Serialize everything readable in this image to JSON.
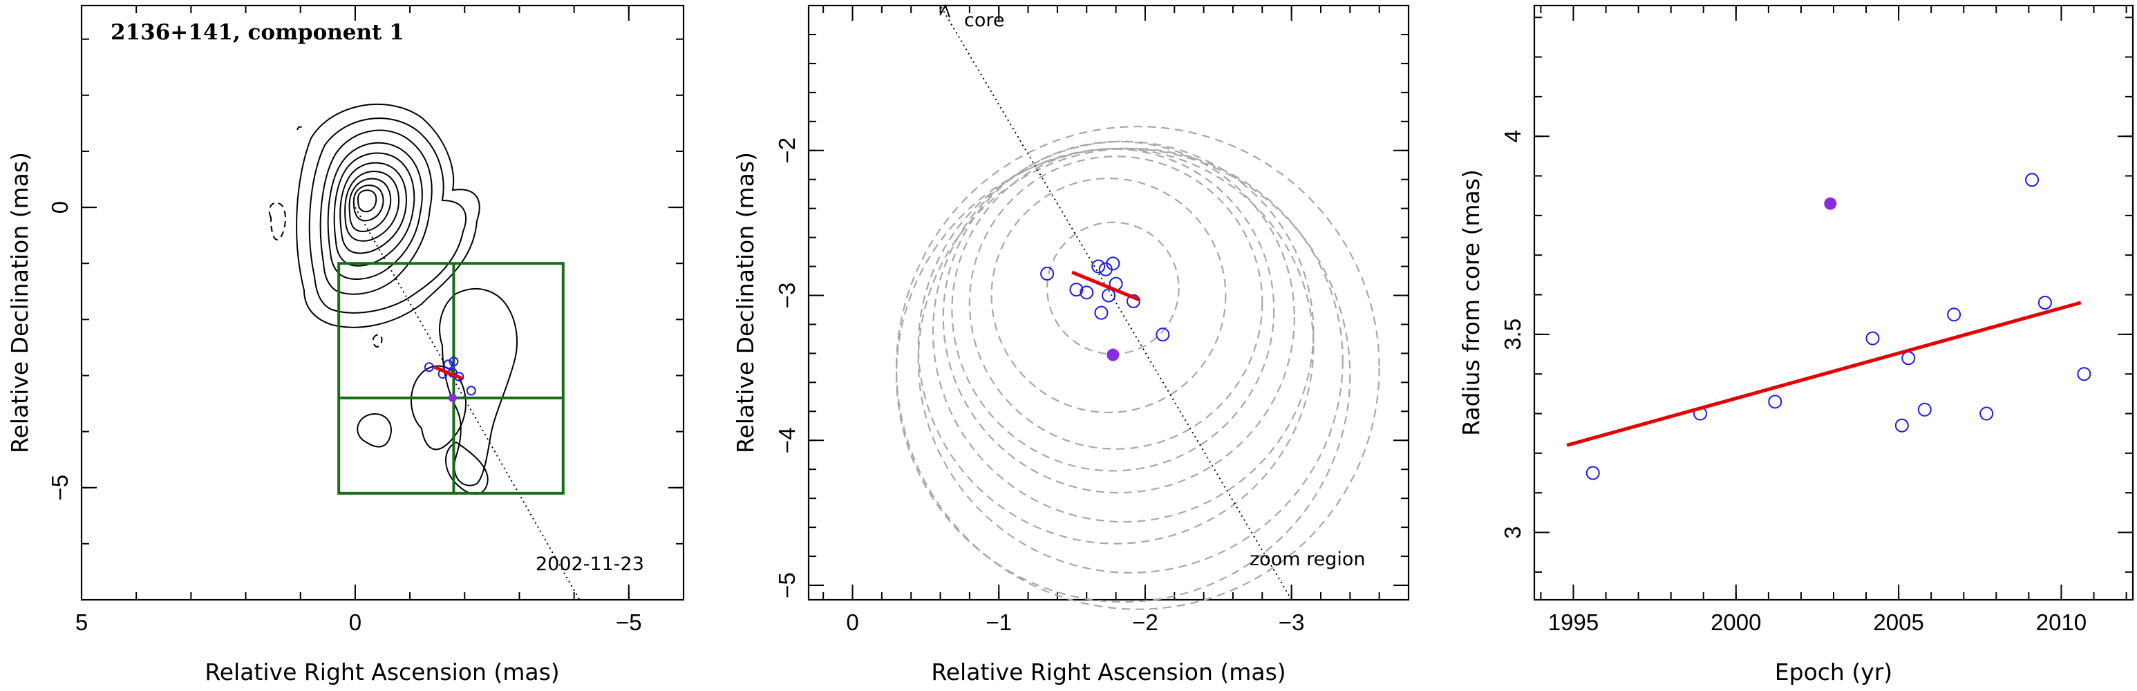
{
  "colors": {
    "open_marker": "#1a1aee",
    "filled_marker": "#8a2be2",
    "fit_line": "#e60000",
    "zoom_box": "#1a6b1a",
    "circles": "#a8a8a8"
  },
  "chart_data": [
    {
      "panel": "left",
      "type": "scatter",
      "title": "2136+141, component 1",
      "xlabel": "Relative Right Ascension (mas)",
      "ylabel": "Relative Declination (mas)",
      "xlim": [
        5,
        -6
      ],
      "ylim": [
        -7,
        3.6
      ],
      "xticks": [
        5,
        0,
        -5
      ],
      "yticks": [
        0,
        -5
      ],
      "epoch_label": "2002-11-23",
      "contour_overlay": true,
      "zoom_box": {
        "x": [
          0.3,
          -3.8
        ],
        "y": [
          -1.0,
          -5.1
        ],
        "cross": {
          "x": -1.8,
          "y": -3.4
        }
      },
      "direction_line": {
        "from": [
          0,
          0
        ],
        "to": [
          -4.1,
          -7.0
        ]
      },
      "points_open": [
        {
          "ra": -1.35,
          "dec": -2.85
        },
        {
          "ra": -1.7,
          "dec": -2.8
        },
        {
          "ra": -1.8,
          "dec": -2.75
        },
        {
          "ra": -1.6,
          "dec": -2.97
        },
        {
          "ra": -1.78,
          "dec": -2.95
        },
        {
          "ra": -1.9,
          "dec": -3.02
        },
        {
          "ra": -2.12,
          "dec": -3.27
        }
      ],
      "points_filled": [
        {
          "ra": -1.78,
          "dec": -3.4
        }
      ],
      "fit": {
        "from": [
          -1.45,
          -2.85
        ],
        "to": [
          -1.95,
          -3.05
        ]
      }
    },
    {
      "panel": "middle",
      "type": "scatter",
      "title": "",
      "xlabel": "Relative Right Ascension (mas)",
      "ylabel": "Relative Declination (mas)",
      "xlim": [
        0.3,
        -3.8
      ],
      "ylim": [
        -5.1,
        -1.0
      ],
      "xticks": [
        0,
        -1,
        -2,
        -3
      ],
      "yticks": [
        -2,
        -3,
        -4,
        -5
      ],
      "annotations": {
        "core": "core",
        "zoom": "zoom region"
      },
      "direction_line": {
        "from": [
          -3.0,
          -5.1
        ],
        "to": [
          -0.6,
          -1.0
        ]
      },
      "circles": [
        {
          "ra": -1.78,
          "dec": -2.95,
          "r": 0.45
        },
        {
          "ra": -1.75,
          "dec": -3.0,
          "r": 0.8
        },
        {
          "ra": -1.8,
          "dec": -3.05,
          "r": 1.0
        },
        {
          "ra": -1.78,
          "dec": -3.1,
          "r": 1.1
        },
        {
          "ra": -1.82,
          "dec": -3.15,
          "r": 1.2
        },
        {
          "ra": -1.85,
          "dec": -3.25,
          "r": 1.3
        },
        {
          "ra": -1.8,
          "dec": -3.35,
          "r": 1.35
        },
        {
          "ra": -1.9,
          "dec": -3.45,
          "r": 1.45
        },
        {
          "ra": -1.85,
          "dec": -3.55,
          "r": 1.55
        },
        {
          "ra": -1.95,
          "dec": -3.5,
          "r": 1.65
        }
      ],
      "points_open": [
        {
          "ra": -1.33,
          "dec": -2.85
        },
        {
          "ra": -1.53,
          "dec": -2.96
        },
        {
          "ra": -1.6,
          "dec": -2.98
        },
        {
          "ra": -1.68,
          "dec": -2.8
        },
        {
          "ra": -1.73,
          "dec": -2.82
        },
        {
          "ra": -1.78,
          "dec": -2.78
        },
        {
          "ra": -1.8,
          "dec": -2.92
        },
        {
          "ra": -1.75,
          "dec": -3.0
        },
        {
          "ra": -1.92,
          "dec": -3.04
        },
        {
          "ra": -1.7,
          "dec": -3.12
        },
        {
          "ra": -2.12,
          "dec": -3.27
        }
      ],
      "points_filled": [
        {
          "ra": -1.78,
          "dec": -3.41
        }
      ],
      "fit": {
        "from": [
          -1.5,
          -2.84
        ],
        "to": [
          -1.96,
          -3.03
        ]
      }
    },
    {
      "panel": "right",
      "type": "scatter",
      "title": "",
      "xlabel": "Epoch (yr)",
      "ylabel": "Radius from core (mas)",
      "xlim": [
        1993.8,
        2012.2
      ],
      "ylim": [
        2.83,
        4.33
      ],
      "xticks": [
        1995,
        2000,
        2005,
        2010
      ],
      "yticks": [
        3,
        3.5,
        4
      ],
      "points_open": [
        {
          "x": 1995.6,
          "y": 3.15
        },
        {
          "x": 1998.9,
          "y": 3.3
        },
        {
          "x": 2001.2,
          "y": 3.33
        },
        {
          "x": 2004.2,
          "y": 3.49
        },
        {
          "x": 2005.1,
          "y": 3.27
        },
        {
          "x": 2005.3,
          "y": 3.44
        },
        {
          "x": 2005.8,
          "y": 3.31
        },
        {
          "x": 2006.7,
          "y": 3.55
        },
        {
          "x": 2007.7,
          "y": 3.3
        },
        {
          "x": 2009.1,
          "y": 3.89
        },
        {
          "x": 2009.5,
          "y": 3.58
        },
        {
          "x": 2010.7,
          "y": 3.4
        }
      ],
      "points_filled": [
        {
          "x": 2002.9,
          "y": 3.83
        }
      ],
      "fit": {
        "from": [
          1994.8,
          3.22
        ],
        "to": [
          2010.6,
          3.58
        ]
      }
    }
  ]
}
